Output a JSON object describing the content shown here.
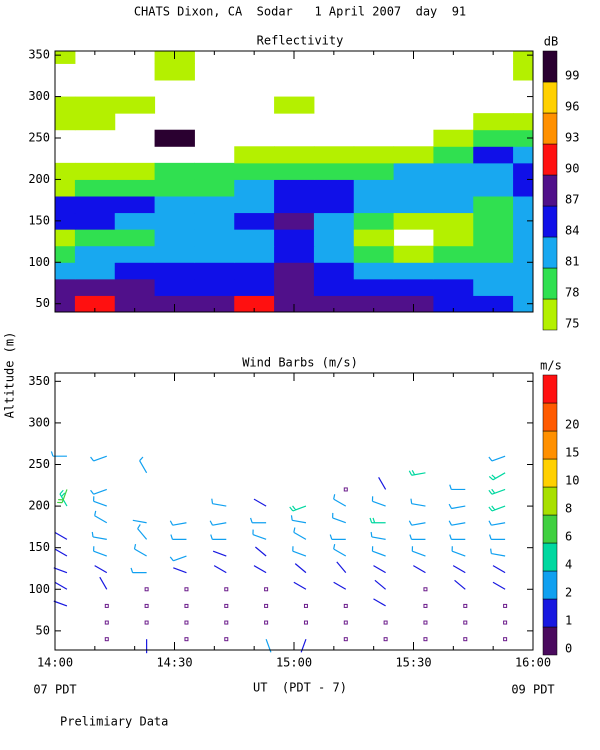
{
  "title": "CHATS Dixon, CA  Sodar   1 April 2007  day  91",
  "ylabel": "Altitude (m)",
  "xlabel": "UT  (PDT - 7)",
  "x_sublabels": [
    "07 PDT",
    "09 PDT"
  ],
  "note": "Prelimiary Data",
  "chart_data": [
    {
      "type": "contour",
      "title": "Reflectivity",
      "x": [
        840,
        850,
        860,
        870,
        880,
        890,
        900,
        910,
        920,
        930,
        940,
        950,
        960
      ],
      "y": [
        50,
        70,
        90,
        110,
        130,
        150,
        170,
        190,
        210,
        230,
        250,
        270,
        290,
        310,
        330,
        350
      ],
      "z": [
        [
          87,
          90,
          87,
          87,
          87,
          90,
          87,
          87,
          87,
          87,
          84,
          84,
          81
        ],
        [
          87,
          87,
          87,
          84,
          84,
          84,
          87,
          84,
          84,
          84,
          84,
          81,
          81
        ],
        [
          81,
          81,
          84,
          84,
          84,
          84,
          87,
          84,
          81,
          81,
          81,
          81,
          81
        ],
        [
          78,
          81,
          81,
          81,
          81,
          81,
          84,
          81,
          78,
          75,
          78,
          78,
          81
        ],
        [
          75,
          78,
          78,
          81,
          81,
          81,
          84,
          81,
          75,
          null,
          75,
          78,
          81
        ],
        [
          84,
          84,
          81,
          81,
          81,
          84,
          87,
          81,
          78,
          75,
          75,
          78,
          81
        ],
        [
          84,
          84,
          84,
          81,
          81,
          81,
          84,
          84,
          81,
          81,
          81,
          78,
          81
        ],
        [
          75,
          78,
          78,
          78,
          78,
          81,
          84,
          84,
          81,
          81,
          81,
          81,
          84
        ],
        [
          75,
          75,
          75,
          78,
          78,
          78,
          78,
          78,
          78,
          81,
          81,
          81,
          84
        ],
        [
          null,
          null,
          null,
          null,
          null,
          75,
          75,
          75,
          75,
          75,
          78,
          84,
          81
        ],
        [
          null,
          null,
          null,
          99,
          null,
          null,
          null,
          null,
          null,
          null,
          75,
          78,
          78
        ],
        [
          75,
          75,
          null,
          null,
          null,
          null,
          null,
          null,
          null,
          null,
          null,
          75,
          75
        ],
        [
          75,
          75,
          75,
          null,
          null,
          null,
          75,
          null,
          null,
          null,
          null,
          null,
          null
        ],
        [
          null,
          null,
          null,
          null,
          null,
          null,
          null,
          null,
          null,
          null,
          null,
          null,
          null
        ],
        [
          null,
          null,
          null,
          75,
          null,
          null,
          null,
          null,
          null,
          null,
          null,
          null,
          75
        ],
        [
          75,
          null,
          null,
          75,
          null,
          null,
          null,
          null,
          null,
          null,
          null,
          null,
          75
        ]
      ],
      "xlim": [
        840,
        960
      ],
      "ylim": [
        40,
        355
      ],
      "xticks": [
        840,
        870,
        900,
        930,
        960
      ],
      "xminorticks": [
        850,
        860,
        880,
        890,
        910,
        920,
        940,
        950
      ],
      "yticks": [
        50,
        100,
        150,
        200,
        250,
        300,
        350
      ],
      "colorbar": {
        "label": "dB",
        "levels": [
          75,
          78,
          81,
          84,
          87,
          90,
          93,
          96,
          99
        ],
        "colors": [
          "#b4f000",
          "#30e050",
          "#18a8f0",
          "#1010e8",
          "#50108a",
          "#ff1010",
          "#ff9000",
          "#ffd000",
          "#2a0030"
        ]
      }
    },
    {
      "type": "barbs",
      "title": "Wind Barbs (m/s)",
      "times": [
        843,
        853,
        863,
        873,
        883,
        893,
        903,
        913,
        923,
        933,
        943,
        953
      ],
      "heights": [
        40,
        60,
        80,
        100,
        120,
        140,
        160,
        180,
        200,
        220,
        240,
        260
      ],
      "speed": [
        [
          null,
          null,
          1.5,
          1.5,
          1.5,
          1.5,
          1.5,
          null,
          5,
          6,
          null,
          3
        ],
        [
          0.3,
          0.3,
          0.3,
          1.5,
          1.5,
          3,
          3,
          3,
          3,
          3,
          null,
          3
        ],
        [
          1,
          0.3,
          0.3,
          0.3,
          3,
          3,
          3,
          2,
          null,
          null,
          3,
          null
        ],
        [
          0.3,
          0.3,
          0.3,
          0.3,
          1.5,
          3,
          3,
          3,
          null,
          null,
          null,
          null
        ],
        [
          0.3,
          0.3,
          0.3,
          0.3,
          1.5,
          1.5,
          3,
          3,
          3,
          null,
          null,
          null
        ],
        [
          2,
          0.3,
          0.3,
          0.3,
          1.5,
          1.5,
          3,
          3,
          1.5,
          null,
          null,
          null
        ],
        [
          1,
          0.3,
          0.3,
          1.5,
          1.5,
          3,
          3,
          3,
          5,
          null,
          null,
          null
        ],
        [
          0.3,
          0.3,
          0.3,
          1.5,
          1.5,
          3,
          3,
          3,
          3,
          0.3,
          null,
          null
        ],
        [
          0.3,
          0.3,
          1.5,
          1.5,
          1.5,
          3,
          3,
          5,
          3,
          1,
          null,
          null
        ],
        [
          0.3,
          0.3,
          0.3,
          0.3,
          1.5,
          3,
          3,
          3,
          3,
          null,
          5,
          null
        ],
        [
          0.3,
          0.3,
          0.3,
          1.5,
          1.5,
          3,
          3,
          3,
          3,
          3,
          null,
          null
        ],
        [
          0.3,
          0.3,
          0.3,
          1.5,
          1.5,
          3,
          3,
          3,
          5,
          5,
          5,
          3
        ]
      ],
      "direction": [
        [
          null,
          null,
          290,
          300,
          290,
          300,
          300,
          null,
          330,
          200,
          null,
          270
        ],
        [
          0,
          0,
          0,
          330,
          300,
          290,
          280,
          300,
          290,
          250,
          null,
          250
        ],
        [
          180,
          0,
          0,
          0,
          270,
          300,
          320,
          280,
          null,
          null,
          330,
          null
        ],
        [
          0,
          0,
          0,
          0,
          290,
          250,
          270,
          260,
          null,
          null,
          null,
          null
        ],
        [
          0,
          0,
          0,
          0,
          300,
          290,
          270,
          260,
          280,
          null,
          null,
          null
        ],
        [
          160,
          0,
          0,
          0,
          300,
          310,
          290,
          270,
          300,
          null,
          null,
          null
        ],
        [
          200,
          0,
          0,
          300,
          310,
          290,
          300,
          280,
          250,
          null,
          null,
          null
        ],
        [
          0,
          0,
          0,
          300,
          320,
          300,
          270,
          290,
          300,
          0,
          null,
          null
        ],
        [
          0,
          0,
          300,
          310,
          300,
          290,
          280,
          270,
          290,
          330,
          null,
          null
        ],
        [
          0,
          0,
          0,
          0,
          300,
          290,
          270,
          260,
          280,
          null,
          260,
          null
        ],
        [
          0,
          0,
          0,
          310,
          300,
          290,
          270,
          260,
          260,
          270,
          null,
          null
        ],
        [
          0,
          0,
          0,
          300,
          300,
          280,
          270,
          260,
          250,
          250,
          240,
          250
        ]
      ],
      "xlim": [
        840,
        960
      ],
      "ylim": [
        27,
        360
      ],
      "xticks": [
        {
          "value": 840,
          "label": "14:00"
        },
        {
          "value": 870,
          "label": "14:30"
        },
        {
          "value": 900,
          "label": "15:00"
        },
        {
          "value": 930,
          "label": "15:30"
        },
        {
          "value": 960,
          "label": "16:00"
        }
      ],
      "xminorticks": [
        850,
        860,
        880,
        890,
        910,
        920,
        940,
        950
      ],
      "yticks": [
        50,
        100,
        150,
        200,
        250,
        300,
        350
      ],
      "colorbar": {
        "label": "m/s",
        "levels": [
          0,
          1,
          2,
          4,
          6,
          8,
          10,
          15,
          20
        ],
        "colors": [
          "#4a0a5e",
          "#1818e0",
          "#10a0f0",
          "#00d8a0",
          "#40d040",
          "#a8e000",
          "#ffd000",
          "#ff9000",
          "#ff5a00",
          "#ff1010"
        ]
      }
    }
  ]
}
